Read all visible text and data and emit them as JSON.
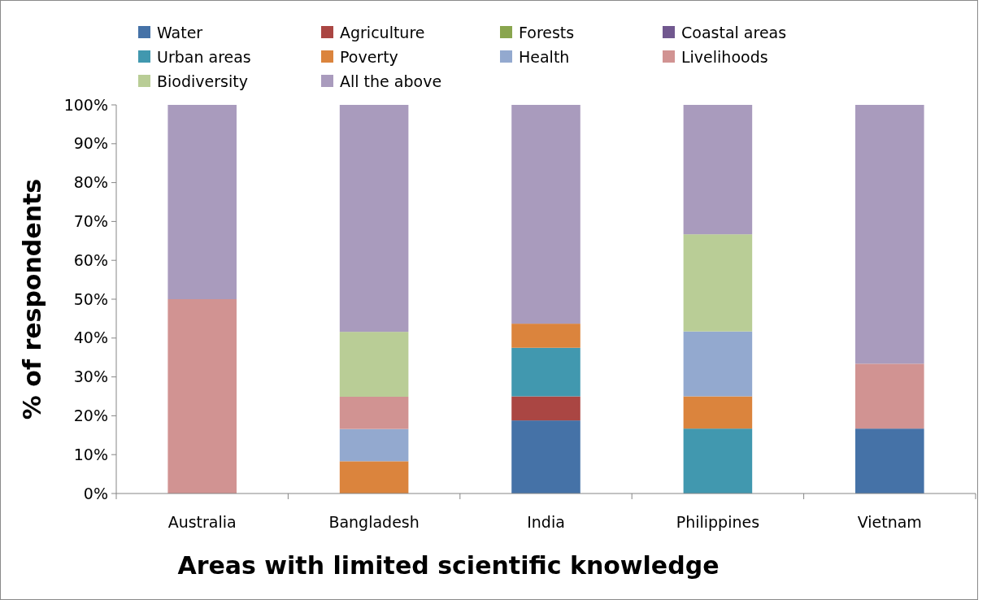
{
  "chart_data": {
    "type": "bar",
    "stacked": true,
    "xlabel": "Areas with limited scientific knowledge",
    "ylabel": "% of respondents",
    "categories": [
      "Australia",
      "Bangladesh",
      "India",
      "Philippines",
      "Vietnam"
    ],
    "ylim": [
      0,
      100
    ],
    "yticks": [
      {
        "value": 0,
        "label": "0%"
      },
      {
        "value": 10,
        "label": "10%"
      },
      {
        "value": 20,
        "label": "20%"
      },
      {
        "value": 30,
        "label": "30%"
      },
      {
        "value": 40,
        "label": "40%"
      },
      {
        "value": 50,
        "label": "50%"
      },
      {
        "value": 60,
        "label": "60%"
      },
      {
        "value": 70,
        "label": "70%"
      },
      {
        "value": 80,
        "label": "80%"
      },
      {
        "value": 90,
        "label": "90%"
      },
      {
        "value": 100,
        "label": "100%"
      }
    ],
    "grid": false,
    "legend": "top",
    "series": [
      {
        "name": "Water",
        "color": "#4572a7",
        "values": [
          0,
          0,
          18.8,
          0,
          16.7
        ]
      },
      {
        "name": "Agriculture",
        "color": "#aa4643",
        "values": [
          0,
          0,
          6.2,
          0,
          0
        ]
      },
      {
        "name": "Forests",
        "color": "#89a54e",
        "values": [
          0,
          0,
          0,
          0,
          0
        ]
      },
      {
        "name": "Coastal areas",
        "color": "#71588f",
        "values": [
          0,
          0,
          0,
          0,
          0
        ]
      },
      {
        "name": "Urban areas",
        "color": "#4198af",
        "values": [
          0,
          0,
          12.5,
          16.7,
          0
        ]
      },
      {
        "name": "Poverty",
        "color": "#db843d",
        "values": [
          0,
          8.3,
          6.2,
          8.3,
          0
        ]
      },
      {
        "name": "Health",
        "color": "#93a9cf",
        "values": [
          0,
          8.3,
          0,
          16.7,
          0
        ]
      },
      {
        "name": "Livelihoods",
        "color": "#d19392",
        "values": [
          50,
          8.3,
          0,
          0,
          16.7
        ]
      },
      {
        "name": "Biodiversity",
        "color": "#b9cd96",
        "values": [
          0,
          16.7,
          0,
          25,
          0
        ]
      },
      {
        "name": "All the above",
        "color": "#a99bbd",
        "values": [
          50,
          58.4,
          56.3,
          33.3,
          66.6
        ]
      }
    ]
  }
}
